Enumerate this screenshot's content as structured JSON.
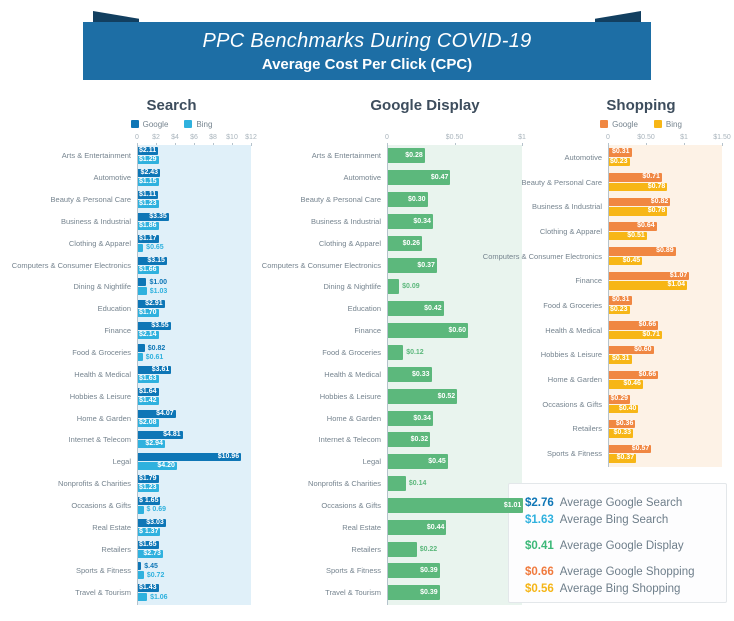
{
  "banner": {
    "title": "PPC Benchmarks During COVID-19",
    "subtitle": "Average Cost Per Click (CPC)"
  },
  "colors": {
    "google_search_blue": "#0e76b6",
    "bing_search_blue": "#2fb1de",
    "google_display_green": "#5cb87c",
    "google_shopping_orange": "#f08742",
    "bing_shopping_yellow": "#f7b616",
    "banner_blue": "#1d6ea5",
    "banner_fold_navy": "#123f60",
    "search_panel_tint": "#e0f0f9",
    "display_panel_tint": "#e9f4ee",
    "shopping_panel_tint": "#fdf2e6"
  },
  "chart_data": [
    {
      "id": "search",
      "type": "bar",
      "orientation": "horizontal",
      "title": "Search",
      "show_legend": true,
      "legend_position": "top",
      "panel_color": "#e0f0f9",
      "xlim": [
        0,
        12
      ],
      "tick_values": [
        0,
        2,
        4,
        6,
        8,
        10,
        12
      ],
      "tick_labels": [
        "0",
        "$2",
        "$4",
        "$6",
        "$8",
        "$10",
        "$12"
      ],
      "inside_label_min": 1.1,
      "categories": [
        "Arts & Entertainment",
        "Automotive",
        "Beauty & Personal Care",
        "Business & Industrial",
        "Clothing & Apparel",
        "Computers & Consumer Electronics",
        "Dining & Nightlife",
        "Education",
        "Finance",
        "Food & Groceries",
        "Health & Medical",
        "Hobbies & Leisure",
        "Home & Garden",
        "Internet & Telecom",
        "Legal",
        "Nonprofits & Charities",
        "Occasions & Gifts",
        "Real Estate",
        "Retailers",
        "Sports & Fitness",
        "Travel & Tourism"
      ],
      "series": [
        {
          "name": "Google",
          "color": "#0e76b6",
          "values": [
            2.11,
            2.43,
            1.11,
            3.35,
            1.17,
            3.15,
            1.0,
            2.91,
            3.55,
            0.82,
            3.61,
            1.64,
            4.07,
            4.81,
            10.96,
            1.79,
            1.65,
            3.03,
            1.65,
            0.45,
            1.43
          ],
          "value_labels": [
            "$2.11",
            "$2.43",
            "$1.11",
            "$3.35",
            "$1.17",
            "$3.15",
            "$1.00",
            "$2.91",
            "$3.55",
            "$0.82",
            "$3.61",
            "$1.64",
            "$4.07",
            "$4.81",
            "$10.96",
            "$1.79",
            "$ 1.65",
            "$3.03",
            "$1.65",
            "$.45",
            "$1.43"
          ]
        },
        {
          "name": "Bing",
          "color": "#2fb1de",
          "values": [
            1.29,
            1.15,
            1.23,
            1.86,
            0.65,
            1.66,
            1.03,
            1.7,
            2.14,
            0.61,
            1.63,
            1.42,
            2.08,
            2.94,
            4.2,
            1.23,
            0.69,
            1.37,
            2.73,
            0.72,
            1.06
          ],
          "value_labels": [
            "$1.29",
            "$1.15",
            "$1.23",
            "$1.86",
            "$0.65",
            "$1.66",
            "$1.03",
            "$1.70",
            "$2.14",
            "$0.61",
            "$1.63",
            "$1.42",
            "$2.08",
            "$2.94",
            "$4.20",
            "$1.23",
            "$ 0.69",
            "$ 1.37",
            "$2.73",
            "$0.72",
            "$1.06"
          ]
        }
      ]
    },
    {
      "id": "display",
      "type": "bar",
      "orientation": "horizontal",
      "title": "Google Display",
      "show_legend": false,
      "panel_color": "#e9f4ee",
      "xlim": [
        0,
        1
      ],
      "tick_values": [
        0,
        0.5,
        1
      ],
      "tick_labels": [
        "0",
        "$0.50",
        "$1"
      ],
      "inside_label_min": 0.25,
      "categories": [
        "Arts & Entertainment",
        "Automotive",
        "Beauty & Personal Care",
        "Business & Industrial",
        "Clothing & Apparel",
        "Computers & Consumer Electronics",
        "Dining & Nightlife",
        "Education",
        "Finance",
        "Food & Groceries",
        "Health & Medical",
        "Hobbies & Leisure",
        "Home & Garden",
        "Internet & Telecom",
        "Legal",
        "Nonprofits & Charities",
        "Occasions & Gifts",
        "Real Estate",
        "Retailers",
        "Sports & Fitness",
        "Travel & Tourism"
      ],
      "series": [
        {
          "name": "Google",
          "color": "#5cb87c",
          "values": [
            0.28,
            0.47,
            0.3,
            0.34,
            0.26,
            0.37,
            0.09,
            0.42,
            0.6,
            0.12,
            0.33,
            0.52,
            0.34,
            0.32,
            0.45,
            0.14,
            1.01,
            0.44,
            0.22,
            0.39,
            0.39
          ],
          "value_labels": [
            "$0.28",
            "$0.47",
            "$0.30",
            "$0.34",
            "$0.26",
            "$0.37",
            "$0.09",
            "$0.42",
            "$0.60",
            "$0.12",
            "$0.33",
            "$0.52",
            "$0.34",
            "$0.32",
            "$0.45",
            "$0.14",
            "$1.01",
            "$0.44",
            "$0.22",
            "$0.39",
            "$0.39"
          ]
        }
      ]
    },
    {
      "id": "shopping",
      "type": "bar",
      "orientation": "horizontal",
      "title": "Shopping",
      "show_legend": true,
      "legend_position": "top",
      "panel_color": "#fdf2e6",
      "xlim": [
        0,
        1.5
      ],
      "tick_values": [
        0,
        0.5,
        1,
        1.5
      ],
      "tick_labels": [
        "0",
        "$0.50",
        "$1",
        "$1.50"
      ],
      "inside_label_min": 0,
      "categories": [
        "Automotive",
        "Beauty & Personal Care",
        "Business & Industrial",
        "Clothing & Apparel",
        "Computers & Consumer Electronics",
        "Finance",
        "Food & Groceries",
        "Health & Medical",
        "Hobbies & Leisure",
        "Home & Garden",
        "Occasions & Gifts",
        "Retailers",
        "Sports & Fitness"
      ],
      "series": [
        {
          "name": "Google",
          "color": "#f08742",
          "values": [
            0.31,
            0.71,
            0.82,
            0.64,
            0.89,
            1.07,
            0.31,
            0.66,
            0.6,
            0.66,
            0.29,
            0.36,
            0.57
          ],
          "value_labels": [
            "$0.31",
            "$0.71",
            "$0.82",
            "$0.64",
            "$0.89",
            "$1.07",
            "$0.31",
            "$0.66",
            "$0.60",
            "$0.66",
            "$0.29",
            "$0.36",
            "$0.57"
          ]
        },
        {
          "name": "Bing",
          "color": "#f7b616",
          "values": [
            0.23,
            0.78,
            0.78,
            0.51,
            0.45,
            1.04,
            0.23,
            0.71,
            0.31,
            0.46,
            0.4,
            0.33,
            0.37
          ],
          "value_labels": [
            "$0.23",
            "$0.78",
            "$0.78",
            "$0.51",
            "$0.45",
            "$1.04",
            "$0.23",
            "$0.71",
            "$0.31",
            "$0.46",
            "$0.40",
            "$0.33",
            "$0.37"
          ]
        }
      ]
    }
  ],
  "summary": {
    "items": [
      {
        "value": "$2.76",
        "label": "Average Google Search",
        "color": "#0e76b6",
        "group_start": false
      },
      {
        "value": "$1.63",
        "label": "Average Bing Search",
        "color": "#2fb1de",
        "group_start": false
      },
      {
        "value": "$0.41",
        "label": "Average Google Display",
        "color": "#3cb878",
        "group_start": true
      },
      {
        "value": "$0.66",
        "label": "Average Google Shopping",
        "color": "#f07a3d",
        "group_start": true
      },
      {
        "value": "$0.56",
        "label": "Average Bing Shopping",
        "color": "#f5b516",
        "group_start": false
      }
    ]
  }
}
